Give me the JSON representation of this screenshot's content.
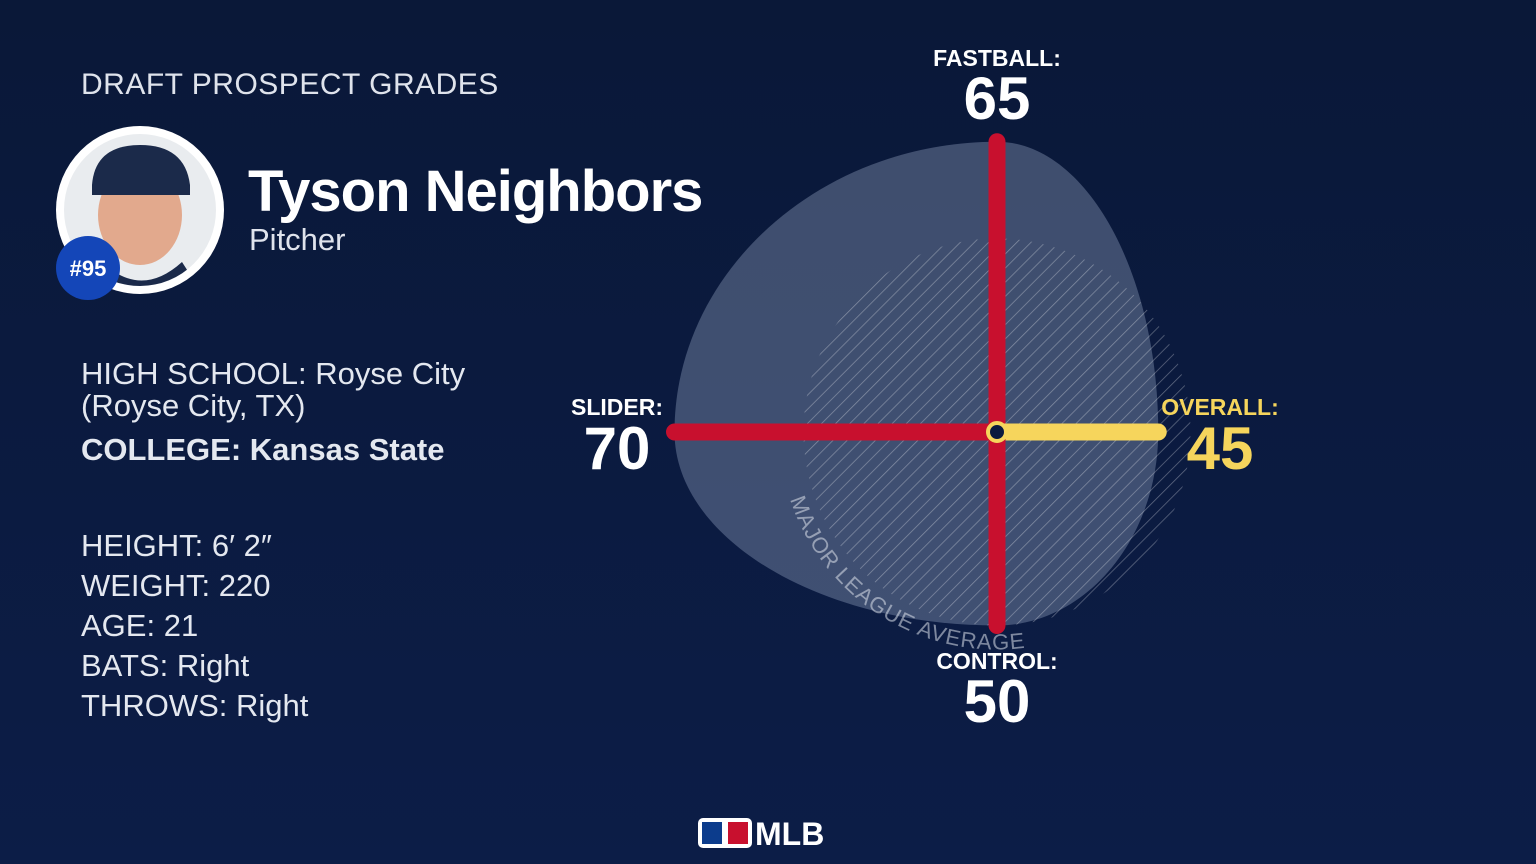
{
  "header": {
    "title": "DRAFT PROSPECT GRADES"
  },
  "player": {
    "name": "Tyson Neighbors",
    "position": "Pitcher",
    "number": "#95"
  },
  "bio": [
    {
      "label": "HIGH SCHOOL:",
      "value": "Royse City (Royse City, TX)"
    },
    {
      "label": "COLLEGE:",
      "value": "Kansas State"
    }
  ],
  "stats": [
    {
      "label": "HEIGHT:",
      "value": "6′ 2″"
    },
    {
      "label": "WEIGHT:",
      "value": "220"
    },
    {
      "label": "AGE:",
      "value": "21"
    },
    {
      "label": "BATS:",
      "value": "Right"
    },
    {
      "label": "THROWS:",
      "value": "Right"
    }
  ],
  "chart_data": {
    "type": "radar",
    "categories": [
      "FASTBALL:",
      "OVERALL:",
      "CONTROL:",
      "SLIDER:"
    ],
    "values": [
      65,
      45,
      50,
      70
    ],
    "colors": [
      "#c8102e",
      "#f6d55c",
      "#c8102e",
      "#c8102e"
    ],
    "label_colors": [
      "#ffffff",
      "#f6d55c",
      "#ffffff",
      "#ffffff"
    ],
    "rlim": [
      20,
      80
    ],
    "reference_label": "MAJOR LEAGUE AVERAGE",
    "reference_value": 50
  },
  "footer": {
    "logo": "MLB"
  }
}
